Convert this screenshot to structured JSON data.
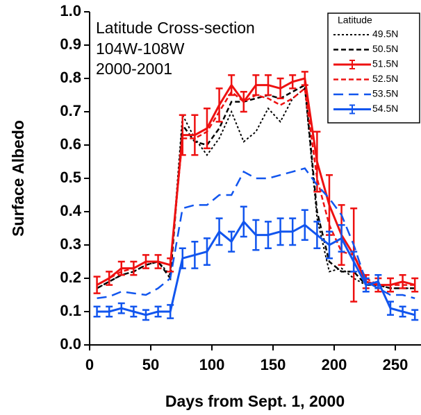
{
  "chart_data": {
    "type": "line",
    "xlabel": "Days from Sept. 1, 2000",
    "ylabel": "Surface Albedo",
    "annotations": [
      "Latitude Cross-section",
      "104W-108W",
      "2000-2001"
    ],
    "legend_title": "Latitude",
    "legend_position": "upper right",
    "xlim": [
      0,
      271
    ],
    "ylim": [
      0,
      1
    ],
    "xticks": [
      0,
      50,
      100,
      150,
      200,
      250
    ],
    "yticks": [
      {
        "value": 0,
        "label": "0.0"
      },
      0.1,
      0.2,
      0.3,
      0.4,
      0.5,
      0.6,
      0.7,
      0.8,
      0.9,
      {
        "value": 1,
        "label": "1.0"
      }
    ],
    "x": [
      6,
      16,
      26,
      36,
      46,
      56,
      66,
      76,
      86,
      96,
      106,
      116,
      126,
      136,
      146,
      156,
      166,
      176,
      186,
      196,
      206,
      216,
      226,
      236,
      246,
      256,
      266
    ],
    "series": [
      {
        "name": "49.5N",
        "color": "#000000",
        "dash": "3,3",
        "width": 2,
        "values": [
          0.17,
          0.19,
          0.21,
          0.22,
          0.24,
          0.25,
          0.21,
          0.69,
          0.62,
          0.57,
          0.62,
          0.7,
          0.61,
          0.64,
          0.71,
          0.67,
          0.74,
          0.77,
          0.38,
          0.22,
          0.23,
          0.2,
          0.18,
          0.18,
          0.17,
          0.17,
          0.17
        ]
      },
      {
        "name": "50.5N",
        "color": "#000000",
        "dash": "7,4",
        "width": 2.5,
        "values": [
          0.17,
          0.19,
          0.21,
          0.22,
          0.24,
          0.25,
          0.2,
          0.66,
          0.61,
          0.6,
          0.65,
          0.73,
          0.73,
          0.74,
          0.75,
          0.74,
          0.76,
          0.78,
          0.4,
          0.25,
          0.22,
          0.22,
          0.18,
          0.18,
          0.17,
          0.17,
          0.17
        ]
      },
      {
        "name": "51.5N",
        "color": "#ee1111",
        "dash": "",
        "width": 3,
        "values": [
          0.18,
          0.2,
          0.23,
          0.23,
          0.25,
          0.25,
          0.24,
          0.63,
          0.63,
          0.65,
          0.72,
          0.78,
          0.73,
          0.78,
          0.78,
          0.77,
          0.79,
          0.8,
          0.55,
          0.42,
          0.33,
          0.27,
          0.19,
          0.18,
          0.18,
          0.19,
          0.18
        ],
        "errors": [
          0.025,
          0.02,
          0.02,
          0.02,
          0.02,
          0.02,
          0.02,
          0.06,
          0.06,
          0.06,
          0.05,
          0.03,
          0.03,
          0.03,
          0.03,
          0.03,
          0.02,
          0.02,
          0.09,
          0.09,
          0.09,
          0.14,
          0.02,
          0.02,
          0.02,
          0.02,
          0.02
        ]
      },
      {
        "name": "52.5N",
        "color": "#ee1111",
        "dash": "7,4",
        "width": 2.5,
        "values": [
          0.18,
          0.2,
          0.22,
          0.23,
          0.25,
          0.25,
          0.24,
          0.62,
          0.62,
          0.64,
          0.7,
          0.76,
          0.73,
          0.75,
          0.74,
          0.72,
          0.74,
          0.77,
          0.5,
          0.36,
          0.28,
          0.27,
          0.2,
          0.18,
          0.18,
          0.18,
          0.18
        ]
      },
      {
        "name": "53.5N",
        "color": "#1155ee",
        "dash": "14,8",
        "width": 2.5,
        "values": [
          0.14,
          0.145,
          0.16,
          0.155,
          0.15,
          0.17,
          0.2,
          0.41,
          0.42,
          0.42,
          0.45,
          0.45,
          0.52,
          0.5,
          0.5,
          0.51,
          0.52,
          0.53,
          0.48,
          0.44,
          0.39,
          0.3,
          0.19,
          0.17,
          0.15,
          0.15,
          0.14
        ]
      },
      {
        "name": "54.5N",
        "color": "#1155ee",
        "dash": "",
        "width": 3,
        "values": [
          0.1,
          0.1,
          0.11,
          0.1,
          0.09,
          0.1,
          0.1,
          0.26,
          0.27,
          0.28,
          0.34,
          0.31,
          0.37,
          0.33,
          0.33,
          0.34,
          0.34,
          0.36,
          0.33,
          0.3,
          0.32,
          0.25,
          0.18,
          0.19,
          0.11,
          0.1,
          0.09
        ],
        "errors": [
          0.015,
          0.015,
          0.015,
          0.015,
          0.015,
          0.015,
          0.02,
          0.03,
          0.04,
          0.04,
          0.04,
          0.03,
          0.045,
          0.045,
          0.04,
          0.04,
          0.04,
          0.045,
          0.04,
          0.04,
          0.04,
          0.03,
          0.02,
          0.02,
          0.02,
          0.015,
          0.015
        ]
      }
    ]
  }
}
